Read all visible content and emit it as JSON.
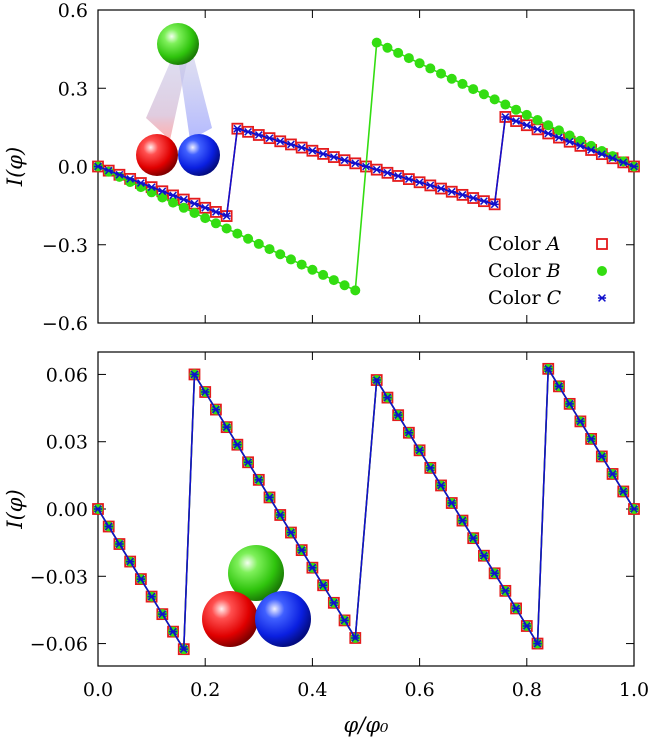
{
  "chart_data": [
    {
      "type": "line",
      "ylabel": "I(φ)",
      "xlabel": "",
      "xlim": [
        0.0,
        1.0
      ],
      "ylim": [
        -0.6,
        0.6
      ],
      "yticks": [
        -0.6,
        -0.3,
        0.0,
        0.3,
        0.6
      ],
      "ytick_labels": [
        "−0.6",
        "−0.3",
        "0.0",
        "0.3",
        "0.6"
      ],
      "xticks": [
        0.0,
        0.2,
        0.4,
        0.6,
        0.8,
        1.0
      ],
      "xtick_labels_visible": false,
      "grid": false,
      "legend_position": "bottom-right",
      "legend": [
        {
          "text": "Color ",
          "symbol_text": "A",
          "marker": "open-square",
          "color": "#e41a1c"
        },
        {
          "text": "Color ",
          "symbol_text": "B",
          "marker": "filled-circle",
          "color": "#33dd11"
        },
        {
          "text": "Color ",
          "symbol_text": "C",
          "marker": "star",
          "color": "#1010cc"
        }
      ],
      "inset": "triangle-of-spheres",
      "series": [
        {
          "name": "Color A",
          "color": "#e41a1c",
          "marker": "open-square",
          "segments": [
            {
              "x0": 0.0,
              "y0": 0.0,
              "x1": 0.24,
              "y1": -0.19,
              "n": 13
            },
            {
              "x0": 0.26,
              "y0": 0.145,
              "x1": 0.74,
              "y1": -0.145,
              "n": 25
            },
            {
              "x0": 0.76,
              "y0": 0.19,
              "x1": 1.0,
              "y1": 0.0,
              "n": 13
            }
          ]
        },
        {
          "name": "Color B",
          "color": "#33dd11",
          "marker": "filled-circle",
          "segments": [
            {
              "x0": 0.0,
              "y0": 0.0,
              "x1": 0.48,
              "y1": -0.475,
              "n": 25
            },
            {
              "x0": 0.52,
              "y0": 0.475,
              "x1": 1.0,
              "y1": 0.0,
              "n": 25
            }
          ]
        },
        {
          "name": "Color C",
          "color": "#1010cc",
          "marker": "star",
          "segments": [
            {
              "x0": 0.0,
              "y0": 0.0,
              "x1": 0.24,
              "y1": -0.19,
              "n": 13
            },
            {
              "x0": 0.26,
              "y0": 0.145,
              "x1": 0.74,
              "y1": -0.145,
              "n": 25
            },
            {
              "x0": 0.76,
              "y0": 0.19,
              "x1": 1.0,
              "y1": 0.0,
              "n": 13
            }
          ]
        }
      ]
    },
    {
      "type": "line",
      "ylabel": "I(φ)",
      "xlabel": "φ/φ₀",
      "xlim": [
        0.0,
        1.0
      ],
      "ylim": [
        -0.07,
        0.07
      ],
      "yticks": [
        -0.06,
        -0.03,
        0.0,
        0.03,
        0.06
      ],
      "ytick_labels": [
        "−0.06",
        "−0.03",
        "0.00",
        "0.03",
        "0.06"
      ],
      "xticks": [
        0.0,
        0.2,
        0.4,
        0.6,
        0.8,
        1.0
      ],
      "xtick_labels": [
        "0.0",
        "0.2",
        "0.4",
        "0.6",
        "0.8",
        "1.0"
      ],
      "grid": false,
      "inset": "close-packed-spheres",
      "series": [
        {
          "name": "Color A",
          "color": "#e41a1c",
          "marker": "open-square",
          "segments": [
            {
              "x0": 0.0,
              "y0": 0.0,
              "x1": 0.16,
              "y1": -0.0625,
              "n": 9
            },
            {
              "x0": 0.18,
              "y0": 0.06,
              "x1": 0.48,
              "y1": -0.0575,
              "n": 16
            },
            {
              "x0": 0.52,
              "y0": 0.0575,
              "x1": 0.82,
              "y1": -0.06,
              "n": 16
            },
            {
              "x0": 0.84,
              "y0": 0.0625,
              "x1": 1.0,
              "y1": 0.0,
              "n": 9
            }
          ]
        },
        {
          "name": "Color B",
          "color": "#33dd11",
          "marker": "filled-circle",
          "segments": [
            {
              "x0": 0.0,
              "y0": 0.0,
              "x1": 0.16,
              "y1": -0.0625,
              "n": 9
            },
            {
              "x0": 0.18,
              "y0": 0.06,
              "x1": 0.48,
              "y1": -0.0575,
              "n": 16
            },
            {
              "x0": 0.52,
              "y0": 0.0575,
              "x1": 0.82,
              "y1": -0.06,
              "n": 16
            },
            {
              "x0": 0.84,
              "y0": 0.0625,
              "x1": 1.0,
              "y1": 0.0,
              "n": 9
            }
          ]
        },
        {
          "name": "Color C",
          "color": "#1010cc",
          "marker": "star",
          "segments": [
            {
              "x0": 0.0,
              "y0": 0.0,
              "x1": 0.16,
              "y1": -0.0625,
              "n": 9
            },
            {
              "x0": 0.18,
              "y0": 0.06,
              "x1": 0.48,
              "y1": -0.0575,
              "n": 16
            },
            {
              "x0": 0.52,
              "y0": 0.0575,
              "x1": 0.82,
              "y1": -0.06,
              "n": 16
            },
            {
              "x0": 0.84,
              "y0": 0.0625,
              "x1": 1.0,
              "y1": 0.0,
              "n": 9
            }
          ]
        }
      ]
    }
  ]
}
